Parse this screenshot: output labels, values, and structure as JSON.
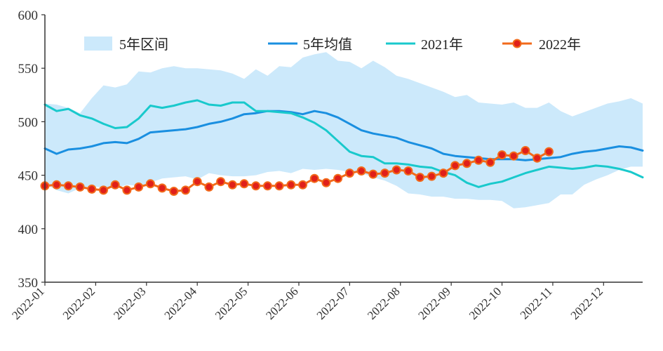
{
  "chart_data": {
    "type": "line",
    "title": "",
    "xlabel": "",
    "ylabel": "",
    "ylim": [
      350,
      600
    ],
    "yticks": [
      350,
      400,
      450,
      500,
      550,
      600
    ],
    "x_ticks": [
      "2022-01",
      "2022-02",
      "2022-03",
      "2022-04",
      "2022-05",
      "2022-06",
      "2022-07",
      "2022-08",
      "2022-09",
      "2022-10",
      "2022-11",
      "2022-12"
    ],
    "x_range_weeks": [
      0,
      51
    ],
    "legend_position": "top",
    "band": {
      "name": "5年区间",
      "color": "#cce9fb",
      "x": [
        0,
        1,
        2,
        3,
        4,
        5,
        6,
        7,
        8,
        9,
        10,
        11,
        12,
        13,
        14,
        15,
        16,
        17,
        18,
        19,
        20,
        21,
        22,
        23,
        24,
        25,
        26,
        27,
        28,
        29,
        30,
        31,
        32,
        33,
        34,
        35,
        36,
        37,
        38,
        39,
        40,
        41,
        42,
        43,
        44,
        45,
        46,
        47,
        48,
        49,
        50,
        51
      ],
      "low": [
        442,
        436,
        433,
        438,
        440,
        438,
        438,
        441,
        440,
        443,
        447,
        448,
        449,
        446,
        452,
        450,
        449,
        449,
        450,
        453,
        454,
        452,
        456,
        455,
        456,
        455,
        453,
        452,
        448,
        445,
        440,
        433,
        432,
        430,
        430,
        428,
        428,
        427,
        427,
        426,
        419,
        420,
        422,
        424,
        432,
        432,
        441,
        446,
        450,
        455,
        458,
        458
      ],
      "high": [
        517,
        516,
        513,
        508,
        522,
        534,
        532,
        535,
        547,
        546,
        550,
        552,
        550,
        550,
        549,
        548,
        545,
        540,
        549,
        543,
        552,
        551,
        560,
        563,
        565,
        557,
        556,
        550,
        557,
        551,
        543,
        540,
        536,
        532,
        528,
        523,
        525,
        518,
        517,
        516,
        518,
        513,
        513,
        518,
        510,
        505,
        509,
        513,
        517,
        519,
        522,
        517
      ]
    },
    "series": [
      {
        "name": "5年均值",
        "color": "#1a8fe0",
        "x": [
          0,
          1,
          2,
          3,
          4,
          5,
          6,
          7,
          8,
          9,
          10,
          11,
          12,
          13,
          14,
          15,
          16,
          17,
          18,
          19,
          20,
          21,
          22,
          23,
          24,
          25,
          26,
          27,
          28,
          29,
          30,
          31,
          32,
          33,
          34,
          35,
          36,
          37,
          38,
          39,
          40,
          41,
          42,
          43,
          44,
          45,
          46,
          47,
          48,
          49,
          50,
          51
        ],
        "values": [
          475,
          470,
          474,
          475,
          477,
          480,
          481,
          480,
          484,
          490,
          491,
          492,
          493,
          495,
          498,
          500,
          503,
          507,
          508,
          510,
          510,
          509,
          507,
          510,
          508,
          504,
          498,
          492,
          489,
          487,
          485,
          481,
          478,
          475,
          470,
          468,
          467,
          466,
          465,
          465,
          465,
          464,
          465,
          466,
          467,
          470,
          472,
          473,
          475,
          477,
          476,
          473
        ]
      },
      {
        "name": "2021年",
        "color": "#19c9cc",
        "x": [
          0,
          1,
          2,
          3,
          4,
          5,
          6,
          7,
          8,
          9,
          10,
          11,
          12,
          13,
          14,
          15,
          16,
          17,
          18,
          19,
          20,
          21,
          22,
          23,
          24,
          25,
          26,
          27,
          28,
          29,
          30,
          31,
          32,
          33,
          34,
          35,
          36,
          37,
          38,
          39,
          40,
          41,
          42,
          43,
          44,
          45,
          46,
          47,
          48,
          49,
          50,
          51
        ],
        "values": [
          516,
          510,
          512,
          506,
          503,
          498,
          494,
          495,
          503,
          515,
          513,
          515,
          518,
          520,
          516,
          515,
          518,
          518,
          510,
          510,
          509,
          508,
          504,
          499,
          492,
          482,
          472,
          468,
          467,
          461,
          461,
          460,
          458,
          457,
          453,
          450,
          443,
          439,
          442,
          444,
          448,
          452,
          455,
          458,
          457,
          456,
          457,
          459,
          458,
          456,
          453,
          448
        ]
      },
      {
        "name": "2022年",
        "color": "#f26a1b",
        "marker_color": "#e0201a",
        "x": [
          0,
          1,
          2,
          3,
          4,
          5,
          6,
          7,
          8,
          9,
          10,
          11,
          12,
          13,
          14,
          15,
          16,
          17,
          18,
          19,
          20,
          21,
          22,
          23,
          24,
          25,
          26,
          27,
          28,
          29,
          30,
          31,
          32,
          33,
          34,
          35,
          36,
          37,
          38,
          39,
          40,
          41,
          42,
          43
        ],
        "values": [
          440,
          441,
          440,
          439,
          437,
          436,
          441,
          436,
          439,
          442,
          438,
          435,
          436,
          444,
          439,
          444,
          441,
          442,
          440,
          440,
          440,
          441,
          441,
          447,
          443,
          447,
          452,
          454,
          451,
          452,
          455,
          454,
          448,
          449,
          452,
          459,
          461,
          464,
          462,
          469,
          468,
          473,
          466,
          472
        ]
      }
    ]
  }
}
